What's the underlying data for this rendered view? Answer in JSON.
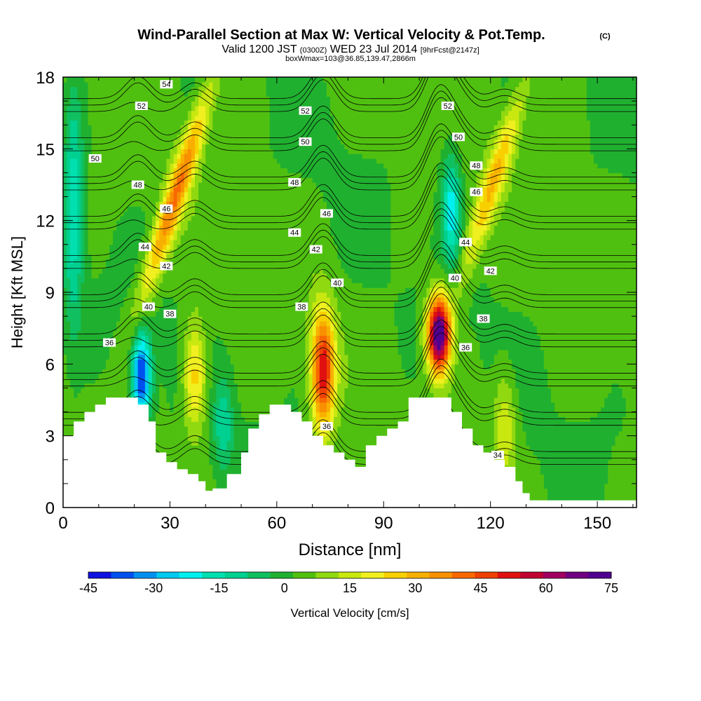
{
  "chart_data": {
    "type": "heatmap",
    "title": "Wind-Parallel Section at Max W: Vertical Velocity & Pot.Temp.",
    "title_mark": "(C)",
    "subtitle_parts": [
      "Valid 1200 JST",
      "(0300Z)",
      "WED 23 Jul 2014",
      "[9hrFcst@2147z]"
    ],
    "subtitle2": "boxWmax=103@36.85,139.47,2866m",
    "xlabel": "Distance [nm]",
    "ylabel": "Height [Kft MSL]",
    "xlim": [
      0,
      161
    ],
    "ylim": [
      0,
      18
    ],
    "x_ticks": [
      0,
      30,
      60,
      90,
      120,
      150
    ],
    "x_tick_labels": [
      "0",
      "30",
      "60",
      "90",
      "120",
      "150"
    ],
    "y_ticks": [
      0,
      3,
      6,
      9,
      12,
      15,
      18
    ],
    "y_tick_labels": [
      "0",
      "3",
      "6",
      "9",
      "12",
      "15",
      "18"
    ],
    "field": "Vertical Velocity",
    "colorbar_label": "Vertical Velocity [cm/s]",
    "colorbar_tick_labels": [
      "-45",
      "-30",
      "-15",
      "0",
      "15",
      "30",
      "45",
      "60",
      "75"
    ],
    "colorbar_ticks": [
      -45,
      -30,
      -15,
      0,
      15,
      30,
      45,
      60,
      75
    ],
    "colorbar_colors": [
      "#1010e0",
      "#0050f0",
      "#0090f0",
      "#00c8f0",
      "#00f0f0",
      "#00e0b0",
      "#00d090",
      "#10c060",
      "#20b030",
      "#50c010",
      "#90d810",
      "#c8e810",
      "#f0f020",
      "#f8d000",
      "#f8b000",
      "#f89000",
      "#f86800",
      "#f04000",
      "#e01010",
      "#c00030",
      "#a00060",
      "#700080",
      "#500090"
    ],
    "w_levels": [
      -45,
      -40,
      -35,
      -30,
      -25,
      -20,
      -15,
      -10,
      -5,
      0,
      5,
      10,
      15,
      20,
      25,
      30,
      35,
      40,
      45,
      50,
      55,
      60,
      65,
      70,
      75
    ],
    "terrain": {
      "x": [
        0,
        3,
        6,
        9,
        12,
        15,
        18,
        21,
        24,
        26,
        29,
        32,
        35,
        38,
        40,
        42,
        46,
        50,
        52,
        55,
        58,
        61,
        64,
        67,
        70,
        73,
        76,
        79,
        82,
        85,
        88,
        91,
        94,
        97,
        100,
        103,
        106,
        109,
        112,
        115,
        118,
        121,
        124,
        127,
        129,
        131,
        135,
        140,
        145,
        150,
        155,
        158,
        161
      ],
      "y": [
        3.0,
        3.6,
        4.0,
        4.3,
        4.6,
        4.6,
        4.6,
        4.3,
        3.6,
        2.3,
        1.9,
        1.6,
        1.4,
        1.1,
        0.7,
        0.8,
        1.4,
        2.3,
        3.3,
        3.9,
        4.3,
        4.3,
        4.0,
        3.6,
        3.0,
        2.6,
        2.3,
        2.0,
        1.7,
        2.6,
        3.0,
        3.3,
        3.6,
        4.6,
        4.6,
        4.6,
        4.6,
        4.0,
        3.3,
        2.6,
        2.3,
        2.0,
        1.7,
        1.1,
        0.6,
        0.3,
        0.3,
        0.3,
        0.3,
        0.3,
        0.3,
        0.3,
        0.3
      ]
    },
    "updrafts": [
      {
        "x": 21,
        "z_bottom": 8,
        "z_top": 18,
        "tilt": 0.35,
        "peak_w": 35
      },
      {
        "x": 37,
        "z_bottom": 3,
        "z_top": 8,
        "tilt": 0.0,
        "peak_w": 25
      },
      {
        "x": 73,
        "z_bottom": 3,
        "z_top": 8.5,
        "tilt": 0.0,
        "peak_w": 50
      },
      {
        "x": 105.5,
        "z_bottom": 5.5,
        "z_top": 9,
        "tilt": 0.0,
        "peak_w": 75
      },
      {
        "x": 111,
        "z_bottom": 9,
        "z_top": 18,
        "tilt": 0.35,
        "peak_w": 25
      },
      {
        "x": 124,
        "z_bottom": 1,
        "z_top": 6,
        "tilt": 0.0,
        "peak_w": 15
      }
    ],
    "downdrafts": [
      {
        "x": 22,
        "z_bottom": 3.5,
        "z_top": 7.5,
        "peak_w": -45
      },
      {
        "x": 3,
        "z_bottom": 7,
        "z_top": 18,
        "peak_w": -20
      },
      {
        "x": 45,
        "z_bottom": 1.5,
        "z_top": 5.5,
        "peak_w": -15
      },
      {
        "x": 109,
        "z_bottom": 10,
        "z_top": 15,
        "peak_w": -25
      }
    ],
    "isentropes": [
      34,
      36,
      38,
      40,
      42,
      44,
      46,
      48,
      50,
      52,
      54
    ],
    "isentrope_labels": [
      {
        "text": "54",
        "x": 29,
        "z": 17.7
      },
      {
        "text": "52",
        "x": 22,
        "z": 16.8
      },
      {
        "text": "52",
        "x": 68,
        "z": 16.6
      },
      {
        "text": "52",
        "x": 108,
        "z": 16.8
      },
      {
        "text": "50",
        "x": 9,
        "z": 14.6
      },
      {
        "text": "50",
        "x": 68,
        "z": 15.3
      },
      {
        "text": "50",
        "x": 111,
        "z": 15.5
      },
      {
        "text": "48",
        "x": 21,
        "z": 13.5
      },
      {
        "text": "48",
        "x": 65,
        "z": 13.6
      },
      {
        "text": "48",
        "x": 116,
        "z": 14.3
      },
      {
        "text": "46",
        "x": 29,
        "z": 12.5
      },
      {
        "text": "46",
        "x": 74,
        "z": 12.3
      },
      {
        "text": "46",
        "x": 116,
        "z": 13.2
      },
      {
        "text": "44",
        "x": 23,
        "z": 10.9
      },
      {
        "text": "44",
        "x": 65,
        "z": 11.5
      },
      {
        "text": "44",
        "x": 113,
        "z": 11.1
      },
      {
        "text": "42",
        "x": 29,
        "z": 10.1
      },
      {
        "text": "42",
        "x": 71,
        "z": 10.8
      },
      {
        "text": "42",
        "x": 120,
        "z": 9.9
      },
      {
        "text": "40",
        "x": 24,
        "z": 8.4
      },
      {
        "text": "40",
        "x": 77,
        "z": 9.4
      },
      {
        "text": "40",
        "x": 110,
        "z": 9.6
      },
      {
        "text": "38",
        "x": 30,
        "z": 8.1
      },
      {
        "text": "38",
        "x": 67,
        "z": 8.4
      },
      {
        "text": "38",
        "x": 118,
        "z": 7.9
      },
      {
        "text": "36",
        "x": 13,
        "z": 6.9
      },
      {
        "text": "36",
        "x": 74,
        "z": 3.4
      },
      {
        "text": "36",
        "x": 113,
        "z": 6.7
      },
      {
        "text": "34",
        "x": 122,
        "z": 2.2
      }
    ]
  }
}
